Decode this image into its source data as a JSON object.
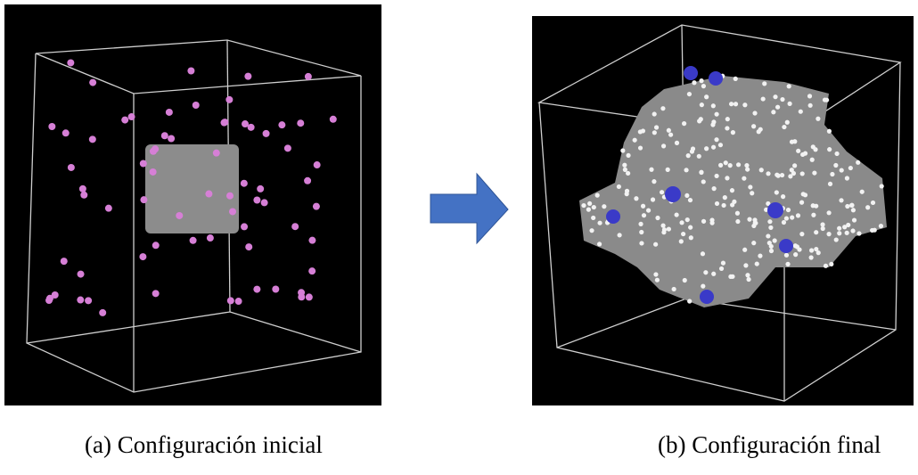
{
  "figure": {
    "panels": [
      {
        "caption": "(a)  Configuración inicial"
      },
      {
        "caption": "(b) Configuración final"
      }
    ]
  }
}
